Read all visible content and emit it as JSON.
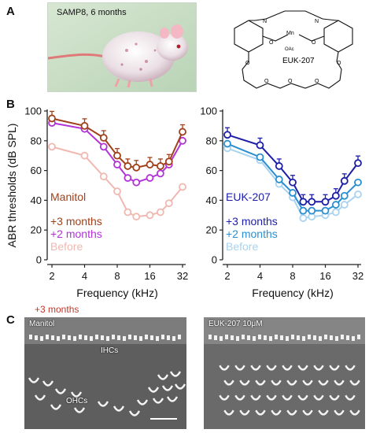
{
  "panels": {
    "a": "A",
    "b": "B",
    "c": "C"
  },
  "photo": {
    "label": "SAMP8, 6 months"
  },
  "molecule": {
    "name": "EUK-207",
    "mn": "Mn",
    "oac": "OAc",
    "n": "N",
    "o": "O"
  },
  "sem": {
    "header": "+3 months",
    "left_label": "Manitol",
    "ihc": "IHCs",
    "ohc": "OHCs",
    "right_label": "EUK-207 10μM"
  },
  "colors": {
    "manitol_3m": "#a0401a",
    "manitol_2m": "#b233d6",
    "manitol_before": "#f0b8b0",
    "euk_3m": "#1c1ea8",
    "euk_2m": "#2a8fd0",
    "euk_before": "#a9d3f0"
  },
  "chart_data": [
    {
      "type": "line",
      "xlabel": "Frequency (kHz)",
      "ylabel": "ABR thresholds (dB SPL)",
      "x": [
        2,
        4,
        6,
        8,
        10,
        12,
        16,
        20,
        24,
        32
      ],
      "xticks": [
        "2",
        "4",
        "8",
        "16",
        "32"
      ],
      "xticks_values": [
        2,
        4,
        8,
        16,
        32
      ],
      "x_scale": "log2",
      "ylim": [
        0,
        100
      ],
      "yticks": [
        "0",
        "20",
        "40",
        "60",
        "80",
        "100"
      ],
      "legend_title": "Manitol",
      "legend_placement": "lower-left",
      "series": [
        {
          "name": "+3 months",
          "color": "#a0401a",
          "values": [
            95,
            90,
            82,
            70,
            63,
            62,
            64,
            63,
            66,
            86
          ]
        },
        {
          "name": "+2 months",
          "color": "#b233d6",
          "values": [
            92,
            88,
            76,
            64,
            55,
            52,
            55,
            58,
            64,
            80
          ]
        },
        {
          "name": "Before",
          "color": "#f0b8b0",
          "values": [
            76,
            70,
            56,
            46,
            32,
            29,
            30,
            32,
            38,
            49
          ]
        }
      ]
    },
    {
      "type": "line",
      "xlabel": "Frequency (kHz)",
      "ylabel": "",
      "x": [
        2,
        4,
        6,
        8,
        10,
        12,
        16,
        20,
        24,
        32
      ],
      "xticks": [
        "2",
        "4",
        "8",
        "16",
        "32"
      ],
      "xticks_values": [
        2,
        4,
        8,
        16,
        32
      ],
      "x_scale": "log2",
      "ylim": [
        0,
        100
      ],
      "yticks": [
        "0",
        "20",
        "40",
        "60",
        "80",
        "100"
      ],
      "legend_title": "EUK-207",
      "legend_placement": "lower-left",
      "series": [
        {
          "name": "+3 months",
          "color": "#1c1ea8",
          "values": [
            84,
            77,
            63,
            52,
            39,
            39,
            39,
            43,
            53,
            65
          ]
        },
        {
          "name": "+2 months",
          "color": "#2a8fd0",
          "values": [
            78,
            69,
            54,
            45,
            33,
            33,
            33,
            37,
            43,
            52
          ]
        },
        {
          "name": "Before",
          "color": "#a9d3f0",
          "values": [
            75,
            67,
            51,
            42,
            28,
            29,
            30,
            32,
            37,
            44
          ]
        }
      ]
    }
  ]
}
